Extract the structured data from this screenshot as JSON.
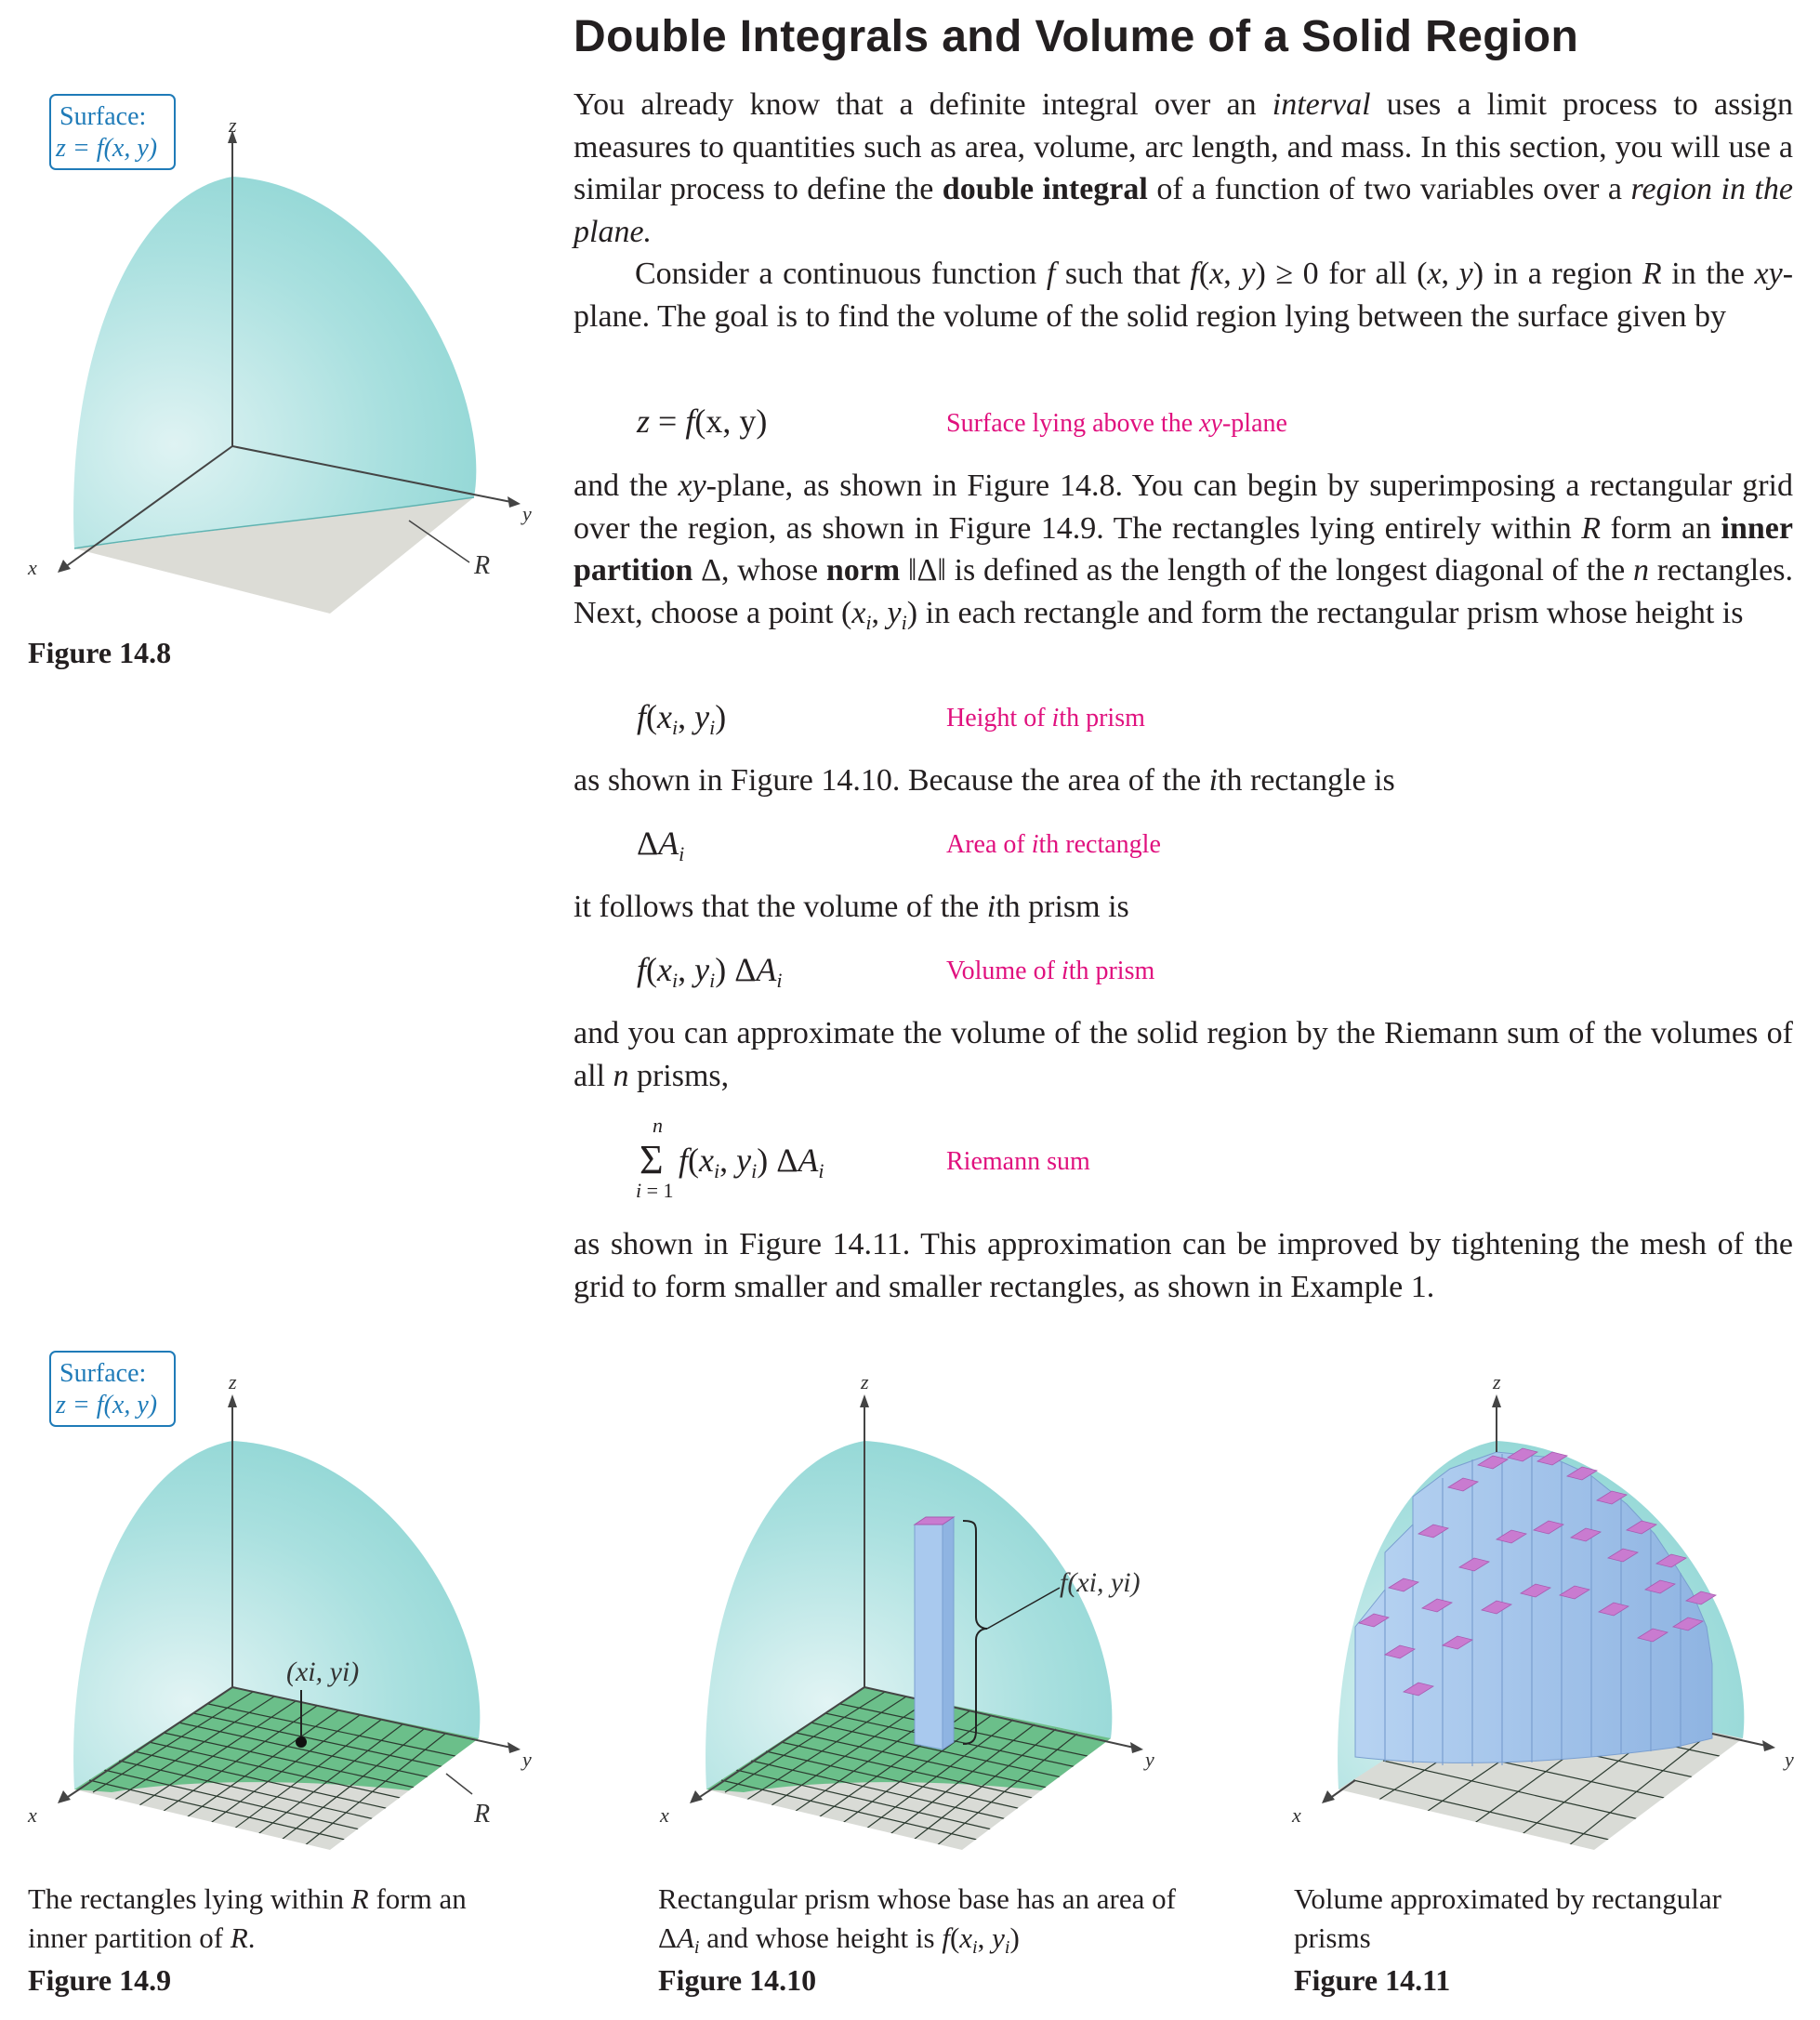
{
  "heading": "Double Integrals and Volume of a Solid Region",
  "paragraphs": {
    "p1": {
      "s1": "You already know that a definite integral over an ",
      "s2": "interval",
      "s3": " uses a limit process to assign measures to quantities such as area, volume, arc length, and mass. In this section, you will use a similar process to define the ",
      "s4": "double integral",
      "s5": " of a function of two variables over a ",
      "s6": "region in the plane."
    },
    "p2": {
      "s1": "Consider a continuous function ",
      "s2": "f",
      "s3": " such that ",
      "s4": "f",
      "s5": "(",
      "s6": "x",
      "s7": ", ",
      "s8": "y",
      "s9": ") ≥ 0 for all (",
      "s10": "x",
      "s11": ", ",
      "s12": "y",
      "s13": ") in a region ",
      "s14": "R",
      "s15": " in the ",
      "s16": "xy",
      "s17": "-plane. The goal is to find the volume of the solid region lying between the surface given by"
    },
    "p3": {
      "s1": "and the ",
      "s2": "xy",
      "s3": "-plane, as shown in Figure 14.8. You can begin by superimposing a rectangular grid over the region, as shown in Figure 14.9. The rectangles lying entirely within ",
      "s4": "R",
      "s5": " form an ",
      "s6": "inner partition",
      "s7": " Δ, whose ",
      "s8": "norm",
      "s9": " ‖Δ‖ is defined as the length of the longest diagonal of the ",
      "s10": "n",
      "s11": " rectangles. Next, choose a point (",
      "s12": "x",
      "s13": "i",
      "s14": ", ",
      "s15": "y",
      "s16": "i",
      "s17": ") in each rectangle and form the rectangular prism whose height is"
    },
    "p4": {
      "s1": "as shown in Figure 14.10. Because the area of the ",
      "s2": "i",
      "s3": "th rectangle is"
    },
    "p5": {
      "s1": "it follows that the volume of the ",
      "s2": "i",
      "s3": "th prism is"
    },
    "p6": {
      "s1": "and you can approximate the volume of the solid region by the Riemann sum of the volumes of all ",
      "s2": "n",
      "s3": " prisms,"
    },
    "p7": {
      "s1": "as shown in Figure 14.11. This approximation can be improved by tightening the mesh of the grid to form smaller and smaller rectangles, as shown in Example 1."
    }
  },
  "equations": {
    "surface": {
      "lhs": "z",
      "eq": " = ",
      "f": "f",
      "args": "(x, y)",
      "note_a": "Surface lying above the ",
      "note_b": "xy",
      "note_c": "-plane"
    },
    "height": {
      "f": "f",
      "open": "(",
      "x": "x",
      "i1": "i",
      "comma": ", ",
      "y": "y",
      "i2": "i",
      "close": ")",
      "note_a": "Height of ",
      "note_b": "i",
      "note_c": "th prism"
    },
    "area": {
      "delta": "Δ",
      "A": "A",
      "i": "i",
      "note_a": "Area of ",
      "note_b": "i",
      "note_c": "th rectangle"
    },
    "volume": {
      "f": "f",
      "open": "(",
      "x": "x",
      "i1": "i",
      "comma": ", ",
      "y": "y",
      "i2": "i",
      "close": ")",
      "delta": " Δ",
      "A": "A",
      "i3": "i",
      "note_a": "Volume of ",
      "note_b": "i",
      "note_c": "th prism"
    },
    "riemann": {
      "n": "n",
      "sigma": "Σ",
      "lower_i": "i",
      "lower_eq": " = 1",
      "f": "f",
      "open": "(",
      "x": "x",
      "i1": "i",
      "comma": ", ",
      "y": "y",
      "i2": "i",
      "close": ")",
      "delta": " Δ",
      "A": "A",
      "i3": "i",
      "note": "Riemann sum"
    }
  },
  "figures": {
    "fig148": {
      "label": "Figure 14.8",
      "box_line1": "Surface:",
      "box_line2": "z = f(x, y)",
      "axis_x": "x",
      "axis_y": "y",
      "axis_z": "z",
      "region": "R"
    },
    "fig149": {
      "label": "Figure 14.9",
      "caption_a": "The rectangles lying within ",
      "caption_b": "R",
      "caption_c": " form an inner partition of ",
      "caption_d": "R",
      "caption_e": ".",
      "box_line1": "Surface:",
      "box_line2": "z = f(x, y)",
      "point": "(xi, yi)",
      "axis_x": "x",
      "axis_y": "y",
      "axis_z": "z",
      "region": "R"
    },
    "fig1410": {
      "label": "Figure 14.10",
      "caption_a": "Rectangular prism whose base has an area of Δ",
      "caption_b": "A",
      "caption_c": "i",
      "caption_d": " and whose height is ",
      "caption_e": "f",
      "caption_f": "(",
      "caption_g": "x",
      "caption_h": "i",
      "caption_i": ", ",
      "caption_j": "y",
      "caption_k": "i",
      "caption_l": ")",
      "height_label": "f(xi, yi)",
      "axis_x": "x",
      "axis_y": "y",
      "axis_z": "z"
    },
    "fig1411": {
      "label": "Figure 14.11",
      "caption": "Volume approximated by rectangular prisms",
      "axis_x": "x",
      "axis_y": "y",
      "axis_z": "z"
    }
  },
  "colors": {
    "surface": "#8fd6d4",
    "surface_light": "#d4eeee",
    "grid_green": "#6bbf8a",
    "grid_gray": "#d9dbd6",
    "prism_side": "#a9c9ee",
    "prism_top": "#c97bd0",
    "note_magenta": "#e0107e",
    "box_blue": "#1f7bb8"
  }
}
